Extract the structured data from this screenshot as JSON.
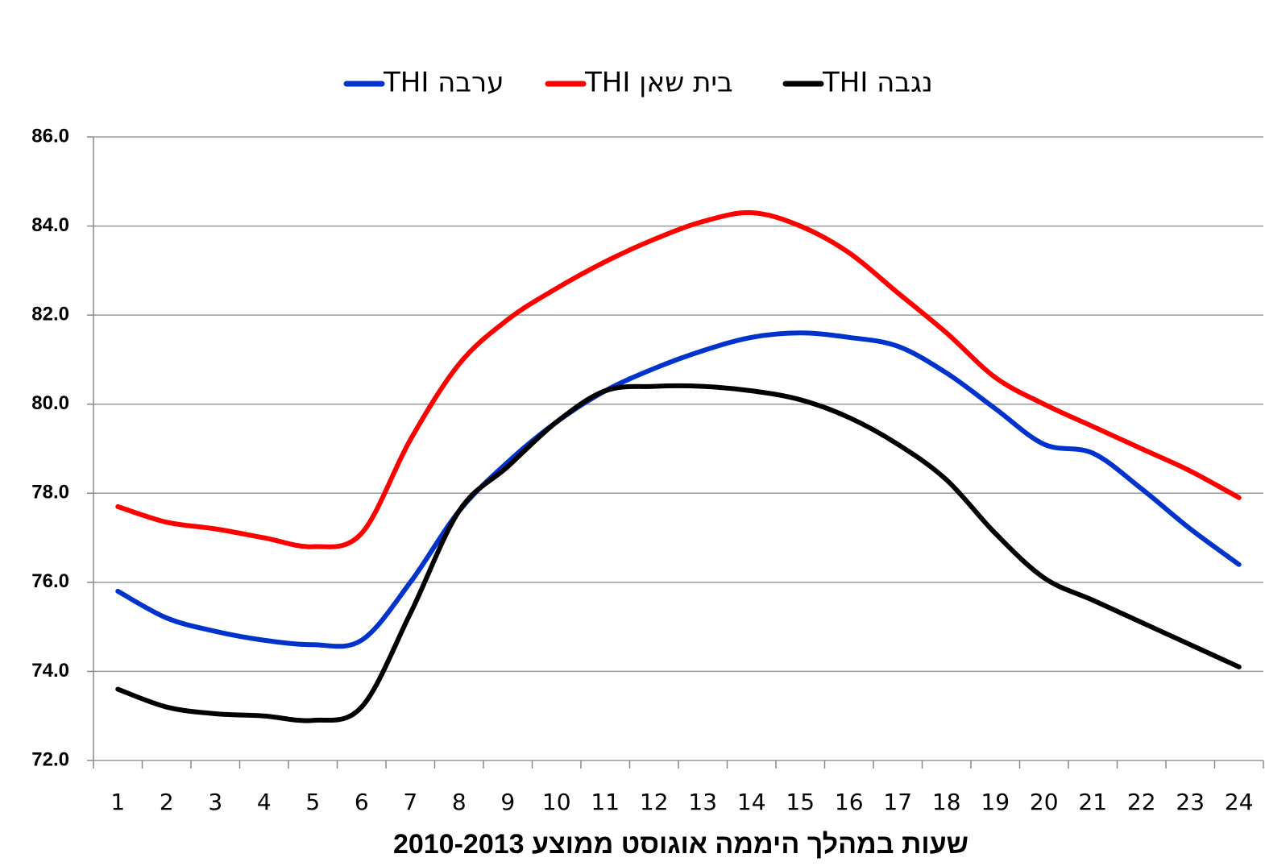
{
  "chart_data": {
    "type": "line",
    "xlabel": "שעות במהלך היממה אוגוסט ממוצע 2010-2013",
    "categories": [
      "1",
      "2",
      "3",
      "4",
      "5",
      "6",
      "7",
      "8",
      "9",
      "10",
      "11",
      "12",
      "13",
      "14",
      "15",
      "16",
      "17",
      "18",
      "19",
      "20",
      "21",
      "22",
      "23",
      "24"
    ],
    "series": [
      {
        "name": "ערבה THI",
        "color": "#0033cc",
        "values": [
          75.8,
          75.2,
          74.9,
          74.7,
          74.6,
          74.7,
          76.0,
          77.6,
          78.7,
          79.6,
          80.3,
          80.8,
          81.2,
          81.5,
          81.6,
          81.5,
          81.3,
          80.7,
          79.9,
          79.1,
          78.9,
          78.1,
          77.2,
          76.4
        ]
      },
      {
        "name": "בית שאן THI",
        "color": "#ff0000",
        "values": [
          77.7,
          77.35,
          77.2,
          77.0,
          76.8,
          77.1,
          79.2,
          80.9,
          81.9,
          82.6,
          83.2,
          83.7,
          84.1,
          84.3,
          84.0,
          83.4,
          82.5,
          81.6,
          80.6,
          80.0,
          79.5,
          79.0,
          78.5,
          77.9
        ]
      },
      {
        "name": "נגבה THI",
        "color": "#000000",
        "values": [
          73.6,
          73.2,
          73.05,
          73.0,
          72.9,
          73.2,
          75.3,
          77.6,
          78.6,
          79.6,
          80.3,
          80.4,
          80.4,
          80.3,
          80.1,
          79.7,
          79.1,
          78.3,
          77.1,
          76.1,
          75.6,
          75.1,
          74.6,
          74.1
        ]
      }
    ],
    "ylim": [
      72,
      86
    ],
    "yticks": [
      {
        "value": 72,
        "label": "72.0"
      },
      {
        "value": 74,
        "label": "74.0"
      },
      {
        "value": 76,
        "label": "76.0"
      },
      {
        "value": 78,
        "label": "78.0"
      },
      {
        "value": 80,
        "label": "80.0"
      },
      {
        "value": 82,
        "label": "82.0"
      },
      {
        "value": 84,
        "label": "84.0"
      },
      {
        "value": 86,
        "label": "86.0"
      }
    ],
    "grid": true,
    "legend": "top"
  }
}
